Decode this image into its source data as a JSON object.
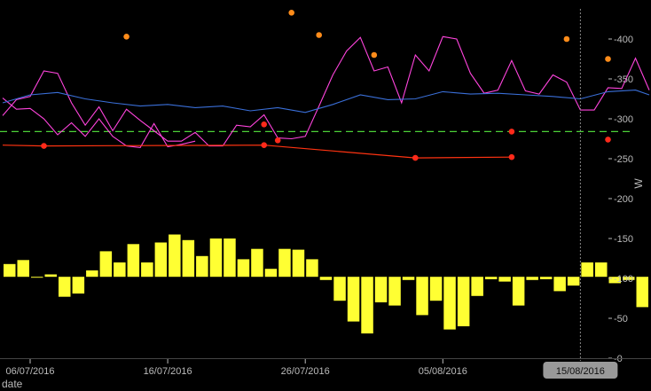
{
  "chart_data": {
    "type": "line",
    "xlabel": "date",
    "ylabel": "W",
    "ylim": [
      0,
      440
    ],
    "x_start": "2016-07-04",
    "x_end": "2016-08-20",
    "grid": false,
    "x_tick_labels": [
      "06/07/2016",
      "16/07/2016",
      "26/07/2016",
      "05/08/2016"
    ],
    "x_tick_dates": [
      "2016-07-06",
      "2016-07-16",
      "2016-07-26",
      "2016-08-05"
    ],
    "y_ticks": [
      0,
      50,
      100,
      150,
      200,
      250,
      300,
      350,
      400
    ],
    "y_tick_labels": [
      "-0",
      "-50",
      "-100",
      "-150",
      "-200",
      "-250",
      "-300",
      "-350",
      "-400"
    ],
    "crosshair": {
      "date": "2016-08-15",
      "label": "15/08/2016"
    },
    "reference_line": {
      "value": 284,
      "color": "#4cd137"
    },
    "colors": {
      "pink": "#ff44dd",
      "blue": "#3a6fd8",
      "red_line": "#ff3311",
      "orange_points": "#ff8c1a",
      "red_points": "#ff2a1a",
      "bars": "#ffff33"
    },
    "series": [
      {
        "kind": "line",
        "color_key": "pink",
        "points": [
          [
            "2016-07-04",
            304
          ],
          [
            "2016-07-05",
            324
          ],
          [
            "2016-07-06",
            328
          ],
          [
            "2016-07-07",
            360
          ],
          [
            "2016-07-08",
            357
          ],
          [
            "2016-07-09",
            320
          ],
          [
            "2016-07-10",
            292
          ],
          [
            "2016-07-11",
            315
          ],
          [
            "2016-07-12",
            285
          ],
          [
            "2016-07-13",
            312
          ],
          [
            "2016-07-14",
            298
          ],
          [
            "2016-07-15",
            285
          ],
          [
            "2016-07-16",
            272
          ],
          [
            "2016-07-17",
            272
          ],
          [
            "2016-07-18",
            283
          ],
          [
            "2016-07-19",
            266
          ],
          [
            "2016-07-20",
            266
          ],
          [
            "2016-07-21",
            292
          ],
          [
            "2016-07-22",
            290
          ],
          [
            "2016-07-23",
            305
          ],
          [
            "2016-07-24",
            276
          ],
          [
            "2016-07-25",
            275
          ],
          [
            "2016-07-26",
            278
          ],
          [
            "2016-07-27",
            316
          ],
          [
            "2016-07-28",
            355
          ],
          [
            "2016-07-29",
            385
          ],
          [
            "2016-07-30",
            402
          ],
          [
            "2016-07-31",
            360
          ],
          [
            "2016-08-01",
            365
          ],
          [
            "2016-08-02",
            320
          ],
          [
            "2016-08-03",
            380
          ],
          [
            "2016-08-04",
            360
          ],
          [
            "2016-08-05",
            403
          ],
          [
            "2016-08-06",
            400
          ],
          [
            "2016-08-07",
            357
          ],
          [
            "2016-08-08",
            332
          ],
          [
            "2016-08-09",
            336
          ],
          [
            "2016-08-10",
            373
          ],
          [
            "2016-08-11",
            335
          ],
          [
            "2016-08-12",
            331
          ],
          [
            "2016-08-13",
            355
          ],
          [
            "2016-08-14",
            346
          ],
          [
            "2016-08-15",
            311
          ],
          [
            "2016-08-16",
            311
          ],
          [
            "2016-08-17",
            339
          ],
          [
            "2016-08-18",
            338
          ],
          [
            "2016-08-19",
            376
          ],
          [
            "2016-08-20",
            336
          ]
        ]
      },
      {
        "kind": "line",
        "color_key": "pink",
        "points": [
          [
            "2016-07-04",
            326
          ],
          [
            "2016-07-05",
            312
          ],
          [
            "2016-07-06",
            313
          ],
          [
            "2016-07-07",
            300
          ],
          [
            "2016-07-08",
            280
          ],
          [
            "2016-07-09",
            295
          ],
          [
            "2016-07-10",
            278
          ],
          [
            "2016-07-11",
            300
          ],
          [
            "2016-07-12",
            278
          ],
          [
            "2016-07-13",
            266
          ],
          [
            "2016-07-14",
            264
          ],
          [
            "2016-07-15",
            294
          ],
          [
            "2016-07-16",
            265
          ],
          [
            "2016-07-17",
            268
          ],
          [
            "2016-07-18",
            272
          ]
        ]
      },
      {
        "kind": "line",
        "color_key": "blue",
        "points": [
          [
            "2016-07-04",
            320
          ],
          [
            "2016-07-06",
            330
          ],
          [
            "2016-07-08",
            333
          ],
          [
            "2016-07-10",
            325
          ],
          [
            "2016-07-12",
            320
          ],
          [
            "2016-07-14",
            316
          ],
          [
            "2016-07-16",
            318
          ],
          [
            "2016-07-18",
            314
          ],
          [
            "2016-07-20",
            316
          ],
          [
            "2016-07-22",
            310
          ],
          [
            "2016-07-24",
            314
          ],
          [
            "2016-07-26",
            308
          ],
          [
            "2016-07-28",
            318
          ],
          [
            "2016-07-30",
            330
          ],
          [
            "2016-08-01",
            324
          ],
          [
            "2016-08-03",
            325
          ],
          [
            "2016-08-05",
            334
          ],
          [
            "2016-08-07",
            331
          ],
          [
            "2016-08-09",
            332
          ],
          [
            "2016-08-11",
            330
          ],
          [
            "2016-08-13",
            328
          ],
          [
            "2016-08-15",
            325
          ],
          [
            "2016-08-17",
            334
          ],
          [
            "2016-08-19",
            336
          ],
          [
            "2016-08-20",
            330
          ]
        ]
      },
      {
        "kind": "line",
        "color_key": "red_line",
        "points": [
          [
            "2016-07-04",
            267
          ],
          [
            "2016-07-07",
            266
          ],
          [
            "2016-07-23",
            267
          ],
          [
            "2016-08-03",
            251
          ],
          [
            "2016-08-10",
            252
          ]
        ]
      },
      {
        "kind": "points",
        "color_key": "red_points",
        "points": [
          [
            "2016-07-07",
            266
          ],
          [
            "2016-07-23",
            267
          ],
          [
            "2016-08-03",
            251
          ],
          [
            "2016-08-10",
            252
          ],
          [
            "2016-07-23",
            293
          ],
          [
            "2016-07-24",
            273
          ],
          [
            "2016-08-10",
            284
          ],
          [
            "2016-08-17",
            274
          ]
        ]
      },
      {
        "kind": "points",
        "color_key": "orange_points",
        "points": [
          [
            "2016-07-13",
            403
          ],
          [
            "2016-07-25",
            433
          ],
          [
            "2016-07-27",
            405
          ],
          [
            "2016-07-31",
            380
          ],
          [
            "2016-08-14",
            400
          ],
          [
            "2016-08-17",
            375
          ]
        ]
      },
      {
        "kind": "bars",
        "color_key": "bars",
        "baseline": 102,
        "points": [
          [
            "2016-07-04",
            118
          ],
          [
            "2016-07-05",
            123
          ],
          [
            "2016-07-06",
            102
          ],
          [
            "2016-07-07",
            105
          ],
          [
            "2016-07-08",
            77
          ],
          [
            "2016-07-09",
            81
          ],
          [
            "2016-07-10",
            110
          ],
          [
            "2016-07-11",
            134
          ],
          [
            "2016-07-12",
            120
          ],
          [
            "2016-07-13",
            143
          ],
          [
            "2016-07-14",
            120
          ],
          [
            "2016-07-15",
            145
          ],
          [
            "2016-07-16",
            155
          ],
          [
            "2016-07-17",
            148
          ],
          [
            "2016-07-18",
            128
          ],
          [
            "2016-07-19",
            150
          ],
          [
            "2016-07-20",
            150
          ],
          [
            "2016-07-21",
            124
          ],
          [
            "2016-07-22",
            137
          ],
          [
            "2016-07-23",
            112
          ],
          [
            "2016-07-24",
            137
          ],
          [
            "2016-07-25",
            136
          ],
          [
            "2016-07-26",
            124
          ],
          [
            "2016-07-27",
            98
          ],
          [
            "2016-07-28",
            72
          ],
          [
            "2016-07-29",
            46
          ],
          [
            "2016-07-30",
            31
          ],
          [
            "2016-07-31",
            70
          ],
          [
            "2016-08-01",
            66
          ],
          [
            "2016-08-02",
            98
          ],
          [
            "2016-08-03",
            54
          ],
          [
            "2016-08-04",
            72
          ],
          [
            "2016-08-05",
            36
          ],
          [
            "2016-08-06",
            40
          ],
          [
            "2016-08-07",
            78
          ],
          [
            "2016-08-08",
            99
          ],
          [
            "2016-08-09",
            96
          ],
          [
            "2016-08-10",
            66
          ],
          [
            "2016-08-11",
            98
          ],
          [
            "2016-08-12",
            99
          ],
          [
            "2016-08-13",
            84
          ],
          [
            "2016-08-14",
            91
          ],
          [
            "2016-08-15",
            120
          ],
          [
            "2016-08-16",
            120
          ],
          [
            "2016-08-17",
            94
          ],
          [
            "2016-08-18",
            98
          ],
          [
            "2016-08-19",
            64
          ]
        ]
      }
    ]
  }
}
